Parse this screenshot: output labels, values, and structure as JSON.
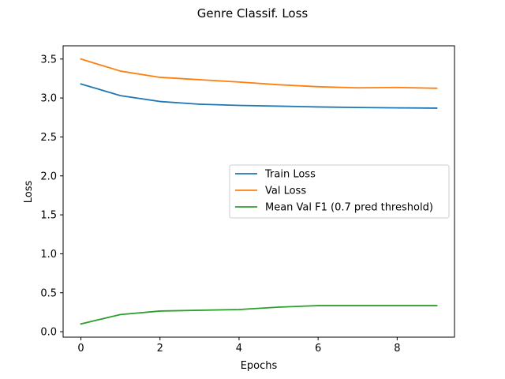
{
  "chart_data": {
    "type": "line",
    "title": "Genre Classif. Loss",
    "xlabel": "Epochs",
    "ylabel": "Loss",
    "x": [
      0,
      1,
      2,
      3,
      4,
      5,
      6,
      7,
      8,
      9
    ],
    "xlim": [
      -0.45,
      9.45
    ],
    "ylim": [
      -0.07,
      3.67
    ],
    "xticks": [
      0,
      2,
      4,
      6,
      8
    ],
    "xtick_labels": [
      "0",
      "2",
      "4",
      "6",
      "8"
    ],
    "yticks": [
      0.0,
      0.5,
      1.0,
      1.5,
      2.0,
      2.5,
      3.0,
      3.5
    ],
    "ytick_labels": [
      "0.0",
      "0.5",
      "1.0",
      "1.5",
      "2.0",
      "2.5",
      "3.0",
      "3.5"
    ],
    "grid": false,
    "legend_position": "center-right",
    "series": [
      {
        "name": "Train Loss",
        "color": "#1f77b4",
        "values": [
          3.18,
          3.03,
          2.955,
          2.92,
          2.905,
          2.895,
          2.885,
          2.878,
          2.873,
          2.87
        ]
      },
      {
        "name": "Val Loss",
        "color": "#ff7f0e",
        "values": [
          3.5,
          3.345,
          3.265,
          3.235,
          3.205,
          3.17,
          3.145,
          3.13,
          3.135,
          3.125
        ]
      },
      {
        "name": "Mean Val F1 (0.7 pred threshold)",
        "color": "#2ca02c",
        "values": [
          0.1,
          0.22,
          0.265,
          0.275,
          0.285,
          0.315,
          0.335,
          0.335,
          0.335,
          0.335
        ]
      }
    ]
  }
}
